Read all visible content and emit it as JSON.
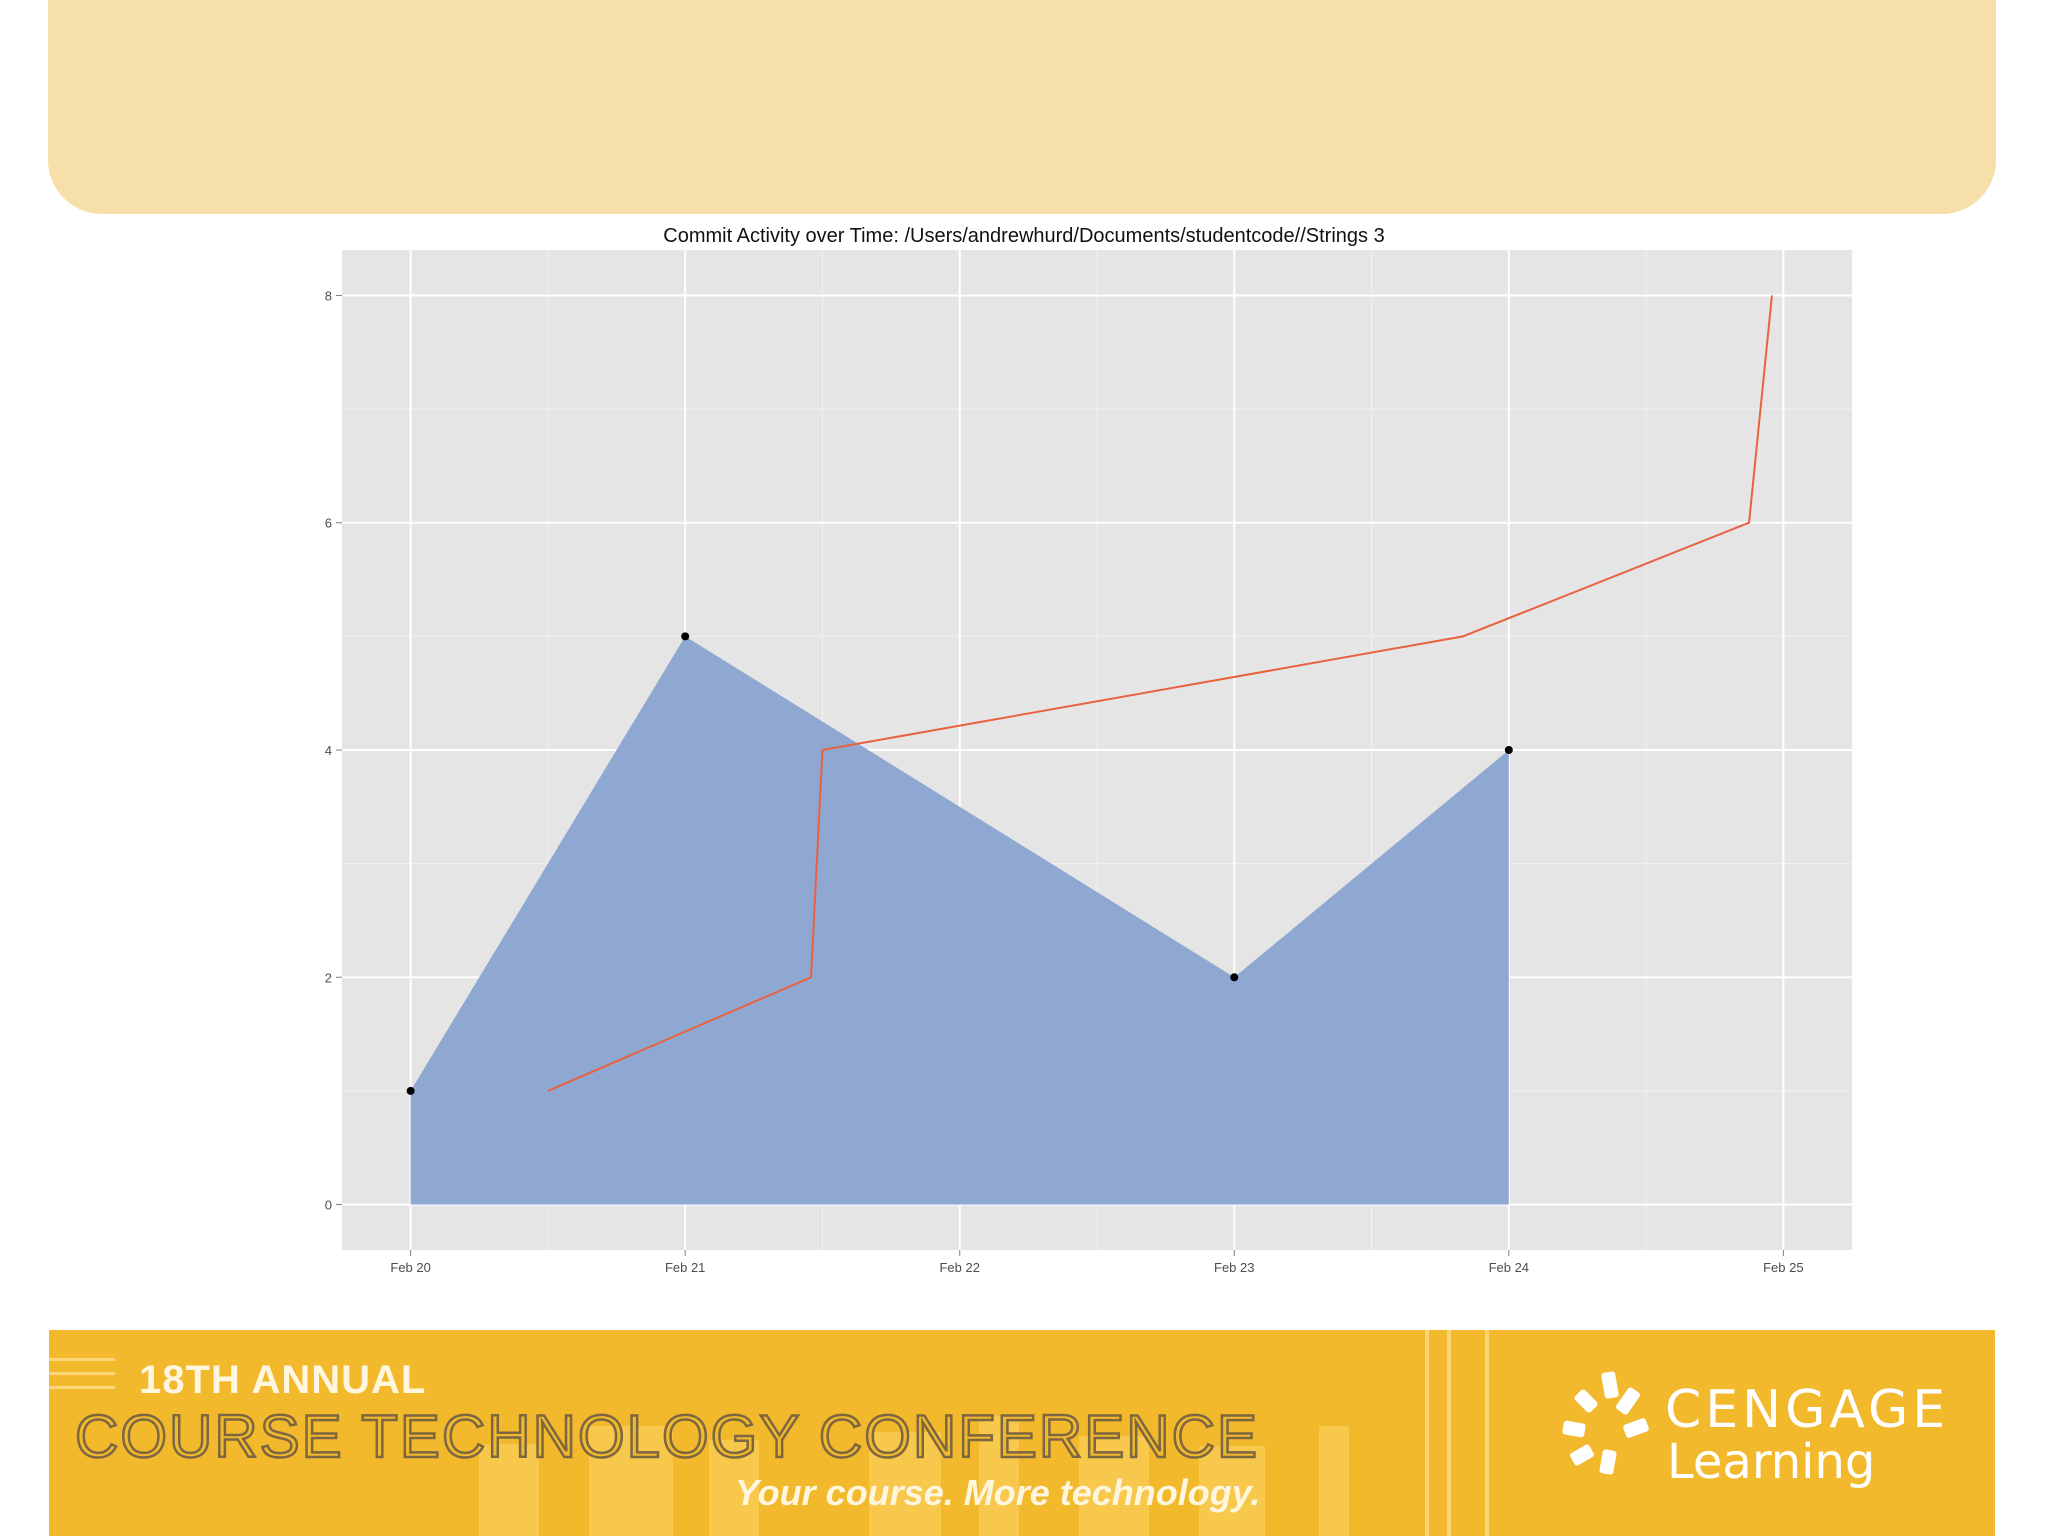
{
  "slide": {
    "background": "#ffffff",
    "banner_color": "#f6dfa8"
  },
  "chart_data": {
    "type": "area",
    "title": "Commit Activity over Time:  /Users/andrewhurd/Documents/studentcode//Strings 3",
    "xlabel": "",
    "ylabel": "",
    "x_ticks": [
      "Feb 20",
      "Feb 21",
      "Feb 22",
      "Feb 23",
      "Feb 24",
      "Feb 25"
    ],
    "y_ticks": [
      0,
      2,
      4,
      6,
      8
    ],
    "xlim": [
      "2013-02-19 18:00",
      "2013-02-25 06:00"
    ],
    "ylim": [
      -0.4,
      8.4
    ],
    "grid": true,
    "panel_background": "#e5e5e5",
    "series": [
      {
        "kind": "area",
        "color": "#8fa8d1",
        "points": [
          {
            "x": "Feb 20",
            "y": 1
          },
          {
            "x": "Feb 21",
            "y": 5
          },
          {
            "x": "Feb 23",
            "y": 2
          },
          {
            "x": "Feb 24",
            "y": 4
          }
        ]
      },
      {
        "kind": "line",
        "color": "#e8623f",
        "points": [
          {
            "x": "Feb 20 12:00",
            "y": 1
          },
          {
            "x": "Feb 21 11:00",
            "y": 2
          },
          {
            "x": "Feb 21 12:00",
            "y": 4
          },
          {
            "x": "Feb 23 20:00",
            "y": 5
          },
          {
            "x": "Feb 24 21:00",
            "y": 6
          },
          {
            "x": "Feb 24 23:00",
            "y": 8
          }
        ]
      }
    ]
  },
  "footer": {
    "annual": "18TH ANNUAL",
    "conference": "COURSE TECHNOLOGY CONFERENCE",
    "tagline": "Your course. More technology.",
    "brand_top": "CENGAGE",
    "brand_bottom": "Learning",
    "color": "#f3b92d"
  }
}
